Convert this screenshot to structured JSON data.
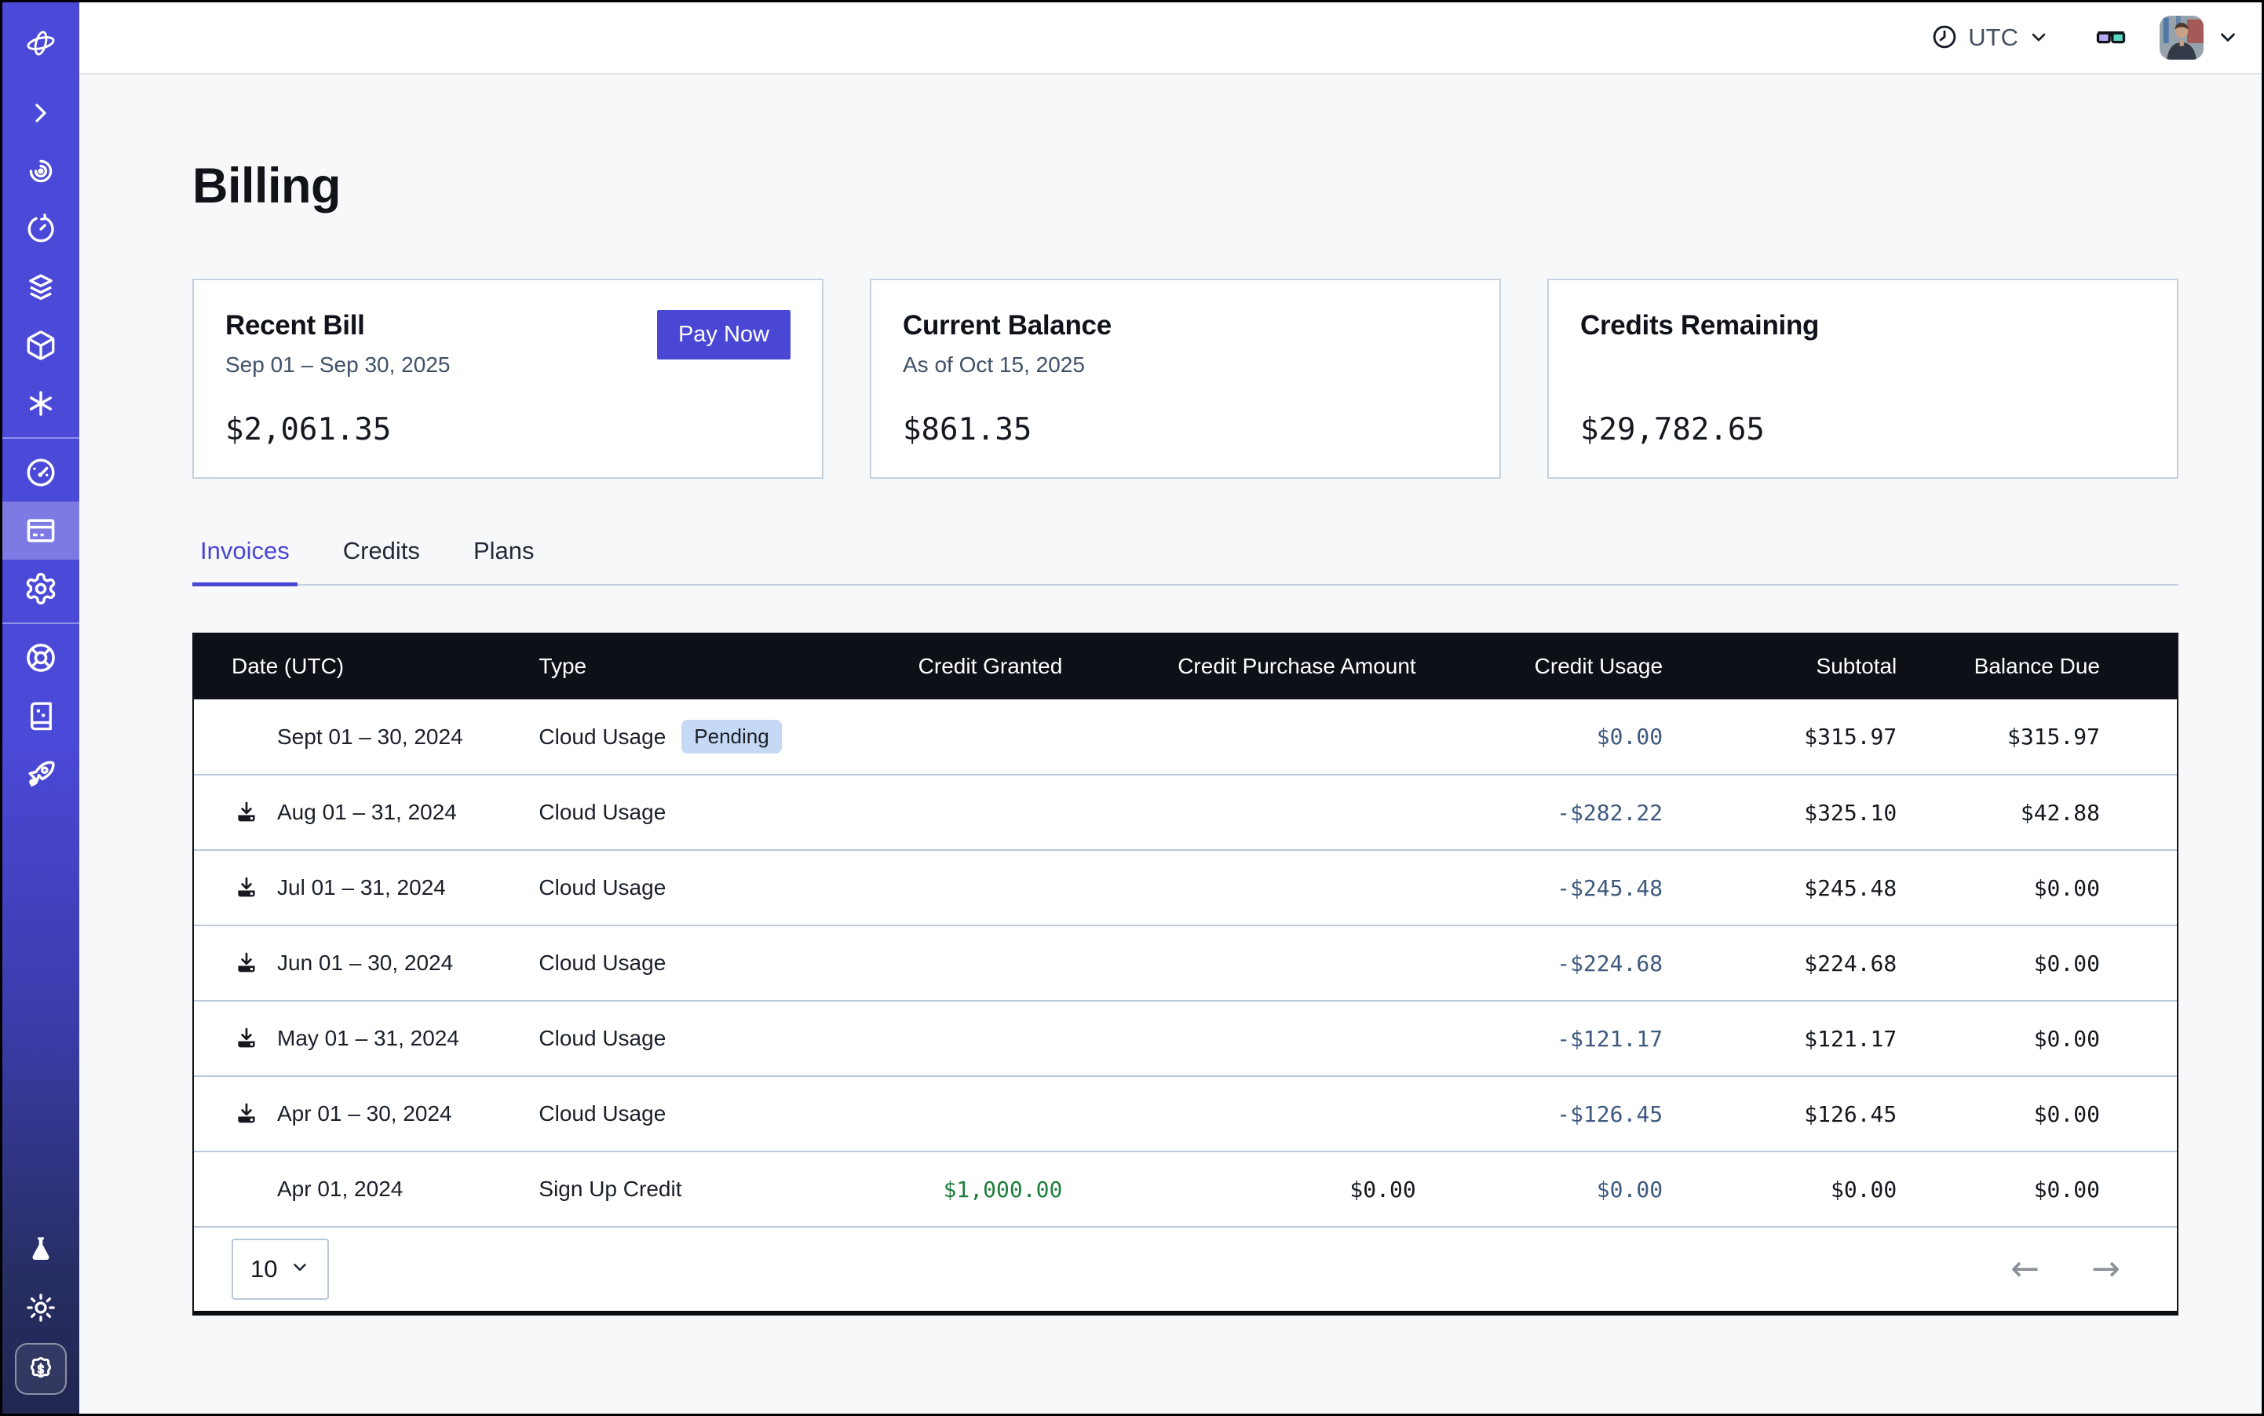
{
  "topbar": {
    "timezone": "UTC",
    "icons": {
      "clock": "clock-outline",
      "glasses": "3d-glasses",
      "chevron_down": "chevron-down"
    }
  },
  "sidebar": {
    "icons": [
      "logo-gyroscope",
      "chevron-right-cli",
      "spiral",
      "timer-history",
      "layers",
      "cube",
      "asterisk",
      "gauge-dashboard",
      "credit-card-billing",
      "gear-settings",
      "lifebuoy-support",
      "book-sparkle-docs",
      "rocket-launch",
      "flask-labs",
      "sun-theme",
      "dollar-badge-credits"
    ],
    "active_item": "credit-card-billing"
  },
  "page": {
    "title": "Billing"
  },
  "cards": [
    {
      "title": "Recent Bill",
      "subtitle": "Sep 01 – Sep 30, 2025",
      "amount": "$2,061.35",
      "action": "Pay Now"
    },
    {
      "title": "Current Balance",
      "subtitle": "As of Oct 15, 2025",
      "amount": "$861.35"
    },
    {
      "title": "Credits Remaining",
      "subtitle": "",
      "amount": "$29,782.65"
    }
  ],
  "tabs": [
    {
      "label": "Invoices",
      "active": true
    },
    {
      "label": "Credits",
      "active": false
    },
    {
      "label": "Plans",
      "active": false
    }
  ],
  "table": {
    "columns": [
      "Date (UTC)",
      "Type",
      "Credit Granted",
      "Credit Purchase Amount",
      "Credit Usage",
      "Subtotal",
      "Balance Due"
    ],
    "rows": [
      {
        "date": "Sept 01 – 30, 2024",
        "download": false,
        "type": "Cloud Usage",
        "badge": "Pending",
        "credit_granted": "",
        "credit_purchase": "",
        "credit_usage": "$0.00",
        "subtotal": "$315.97",
        "balance_due": "$315.97"
      },
      {
        "date": "Aug 01 – 31, 2024",
        "download": true,
        "type": "Cloud Usage",
        "badge": "",
        "credit_granted": "",
        "credit_purchase": "",
        "credit_usage": "-$282.22",
        "subtotal": "$325.10",
        "balance_due": "$42.88"
      },
      {
        "date": "Jul 01 – 31, 2024",
        "download": true,
        "type": "Cloud Usage",
        "badge": "",
        "credit_granted": "",
        "credit_purchase": "",
        "credit_usage": "-$245.48",
        "subtotal": "$245.48",
        "balance_due": "$0.00"
      },
      {
        "date": "Jun 01 – 30, 2024",
        "download": true,
        "type": "Cloud Usage",
        "badge": "",
        "credit_granted": "",
        "credit_purchase": "",
        "credit_usage": "-$224.68",
        "subtotal": "$224.68",
        "balance_due": "$0.00"
      },
      {
        "date": "May 01 – 31, 2024",
        "download": true,
        "type": "Cloud Usage",
        "badge": "",
        "credit_granted": "",
        "credit_purchase": "",
        "credit_usage": "-$121.17",
        "subtotal": "$121.17",
        "balance_due": "$0.00"
      },
      {
        "date": "Apr 01 – 30, 2024",
        "download": true,
        "type": "Cloud Usage",
        "badge": "",
        "credit_granted": "",
        "credit_purchase": "",
        "credit_usage": "-$126.45",
        "subtotal": "$126.45",
        "balance_due": "$0.00"
      },
      {
        "date": "Apr 01, 2024",
        "download": false,
        "type": "Sign Up Credit",
        "badge": "",
        "credit_granted": "$1,000.00",
        "credit_granted_green": true,
        "credit_purchase": "$0.00",
        "credit_usage": "$0.00",
        "subtotal": "$0.00",
        "balance_due": "$0.00"
      }
    ],
    "pagination": {
      "page_size": "10",
      "prev_arrow": "←",
      "next_arrow": "→"
    }
  },
  "colors": {
    "accent": "#4a47d5",
    "sidebar_top": "#4b49d8",
    "sidebar_bottom": "#212750",
    "table_header_bg": "#0d1117",
    "row_divider": "#b9c7d9",
    "credit_usage_text": "#3e5a7e",
    "credit_granted_green": "#1e7e3d",
    "pending_badge_bg": "#c5d8f4",
    "page_bg": "#f7f8fa",
    "card_border": "#c6d1e0"
  }
}
